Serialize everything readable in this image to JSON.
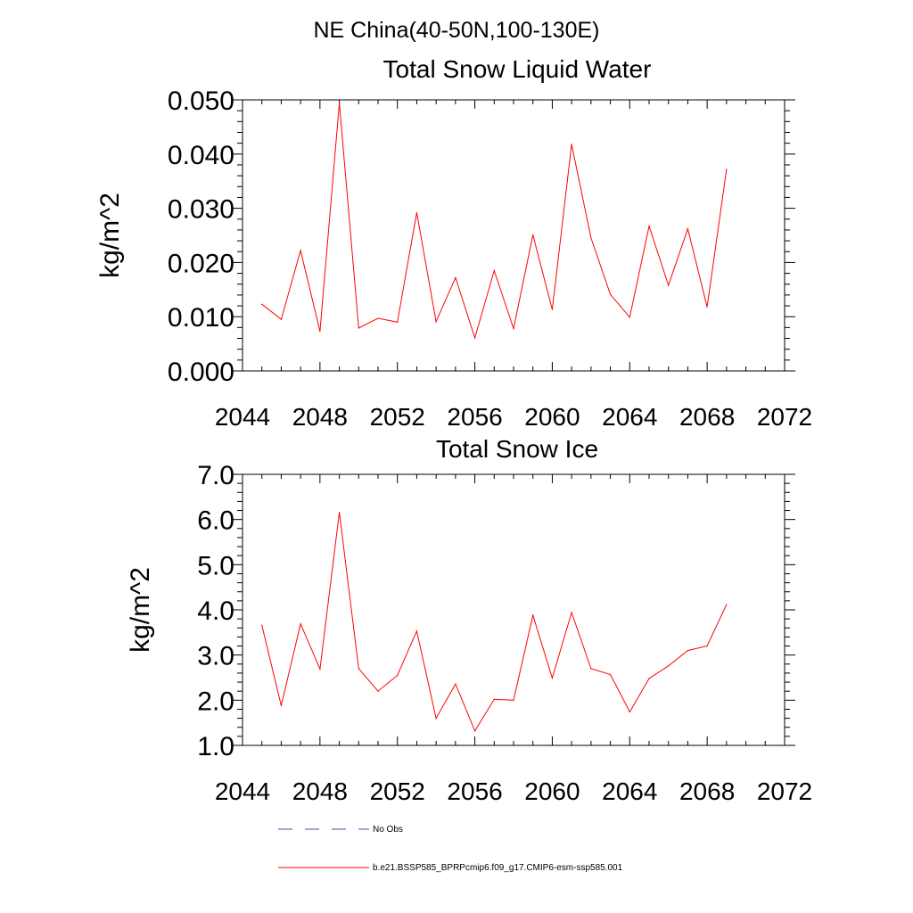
{
  "figure_title": "NE China(40-50N,100-130E)",
  "legend": {
    "entries": [
      {
        "label": "No Obs",
        "color": "#4a4a9a",
        "dash": "dashed"
      },
      {
        "label": "b.e21.BSSP585_BPRPcmip6.f09_g17.CMIP6-esm-ssp585.001",
        "color": "#ff0000",
        "dash": "solid"
      }
    ]
  },
  "chart_data": [
    {
      "type": "line",
      "title": "Total Snow Liquid Water",
      "ylabel": "kg/m^2",
      "xlabel": "",
      "xlim": [
        2044,
        2072
      ],
      "ylim": [
        0.0,
        0.05
      ],
      "xticks": [
        2044,
        2048,
        2052,
        2056,
        2060,
        2064,
        2068,
        2072
      ],
      "xtick_labels": [
        "2044",
        "2048",
        "2052",
        "2056",
        "2060",
        "2064",
        "2068",
        "2072"
      ],
      "yticks": [
        0.0,
        0.01,
        0.02,
        0.03,
        0.04,
        0.05
      ],
      "ytick_labels": [
        "0.000",
        "0.010",
        "0.020",
        "0.030",
        "0.040",
        "0.050"
      ],
      "grid": false,
      "x": [
        2045,
        2046,
        2047,
        2048,
        2049,
        2050,
        2051,
        2052,
        2053,
        2054,
        2055,
        2056,
        2057,
        2058,
        2059,
        2060,
        2061,
        2062,
        2063,
        2064,
        2065,
        2066,
        2067,
        2068,
        2069
      ],
      "series": [
        {
          "name": "b.e21.BSSP585_BPRPcmip6.f09_g17.CMIP6-esm-ssp585.001",
          "color": "#ff0000",
          "values": [
            0.0123,
            0.0095,
            0.0222,
            0.0073,
            0.0494,
            0.0079,
            0.0097,
            0.009,
            0.0292,
            0.0091,
            0.0172,
            0.0061,
            0.0185,
            0.0078,
            0.0251,
            0.0113,
            0.0418,
            0.0245,
            0.0141,
            0.0099,
            0.0267,
            0.0158,
            0.0262,
            0.0118,
            0.0372
          ]
        }
      ]
    },
    {
      "type": "line",
      "title": "Total Snow Ice",
      "ylabel": "kg/m^2",
      "xlabel": "",
      "xlim": [
        2044,
        2072
      ],
      "ylim": [
        1.0,
        7.0
      ],
      "xticks": [
        2044,
        2048,
        2052,
        2056,
        2060,
        2064,
        2068,
        2072
      ],
      "xtick_labels": [
        "2044",
        "2048",
        "2052",
        "2056",
        "2060",
        "2064",
        "2068",
        "2072"
      ],
      "yticks": [
        1.0,
        2.0,
        3.0,
        4.0,
        5.0,
        6.0,
        7.0
      ],
      "ytick_labels": [
        "1.0",
        "2.0",
        "3.0",
        "4.0",
        "5.0",
        "6.0",
        "7.0"
      ],
      "grid": false,
      "x": [
        2045,
        2046,
        2047,
        2048,
        2049,
        2050,
        2051,
        2052,
        2053,
        2054,
        2055,
        2056,
        2057,
        2058,
        2059,
        2060,
        2061,
        2062,
        2063,
        2064,
        2065,
        2066,
        2067,
        2068,
        2069
      ],
      "series": [
        {
          "name": "b.e21.BSSP585_BPRPcmip6.f09_g17.CMIP6-esm-ssp585.001",
          "color": "#ff0000",
          "values": [
            3.66,
            1.88,
            3.69,
            2.69,
            6.16,
            2.7,
            2.2,
            2.55,
            3.53,
            1.6,
            2.36,
            1.32,
            2.02,
            2.0,
            3.88,
            2.49,
            3.94,
            2.7,
            2.57,
            1.74,
            2.48,
            2.76,
            3.1,
            3.2,
            4.12
          ]
        }
      ]
    }
  ]
}
